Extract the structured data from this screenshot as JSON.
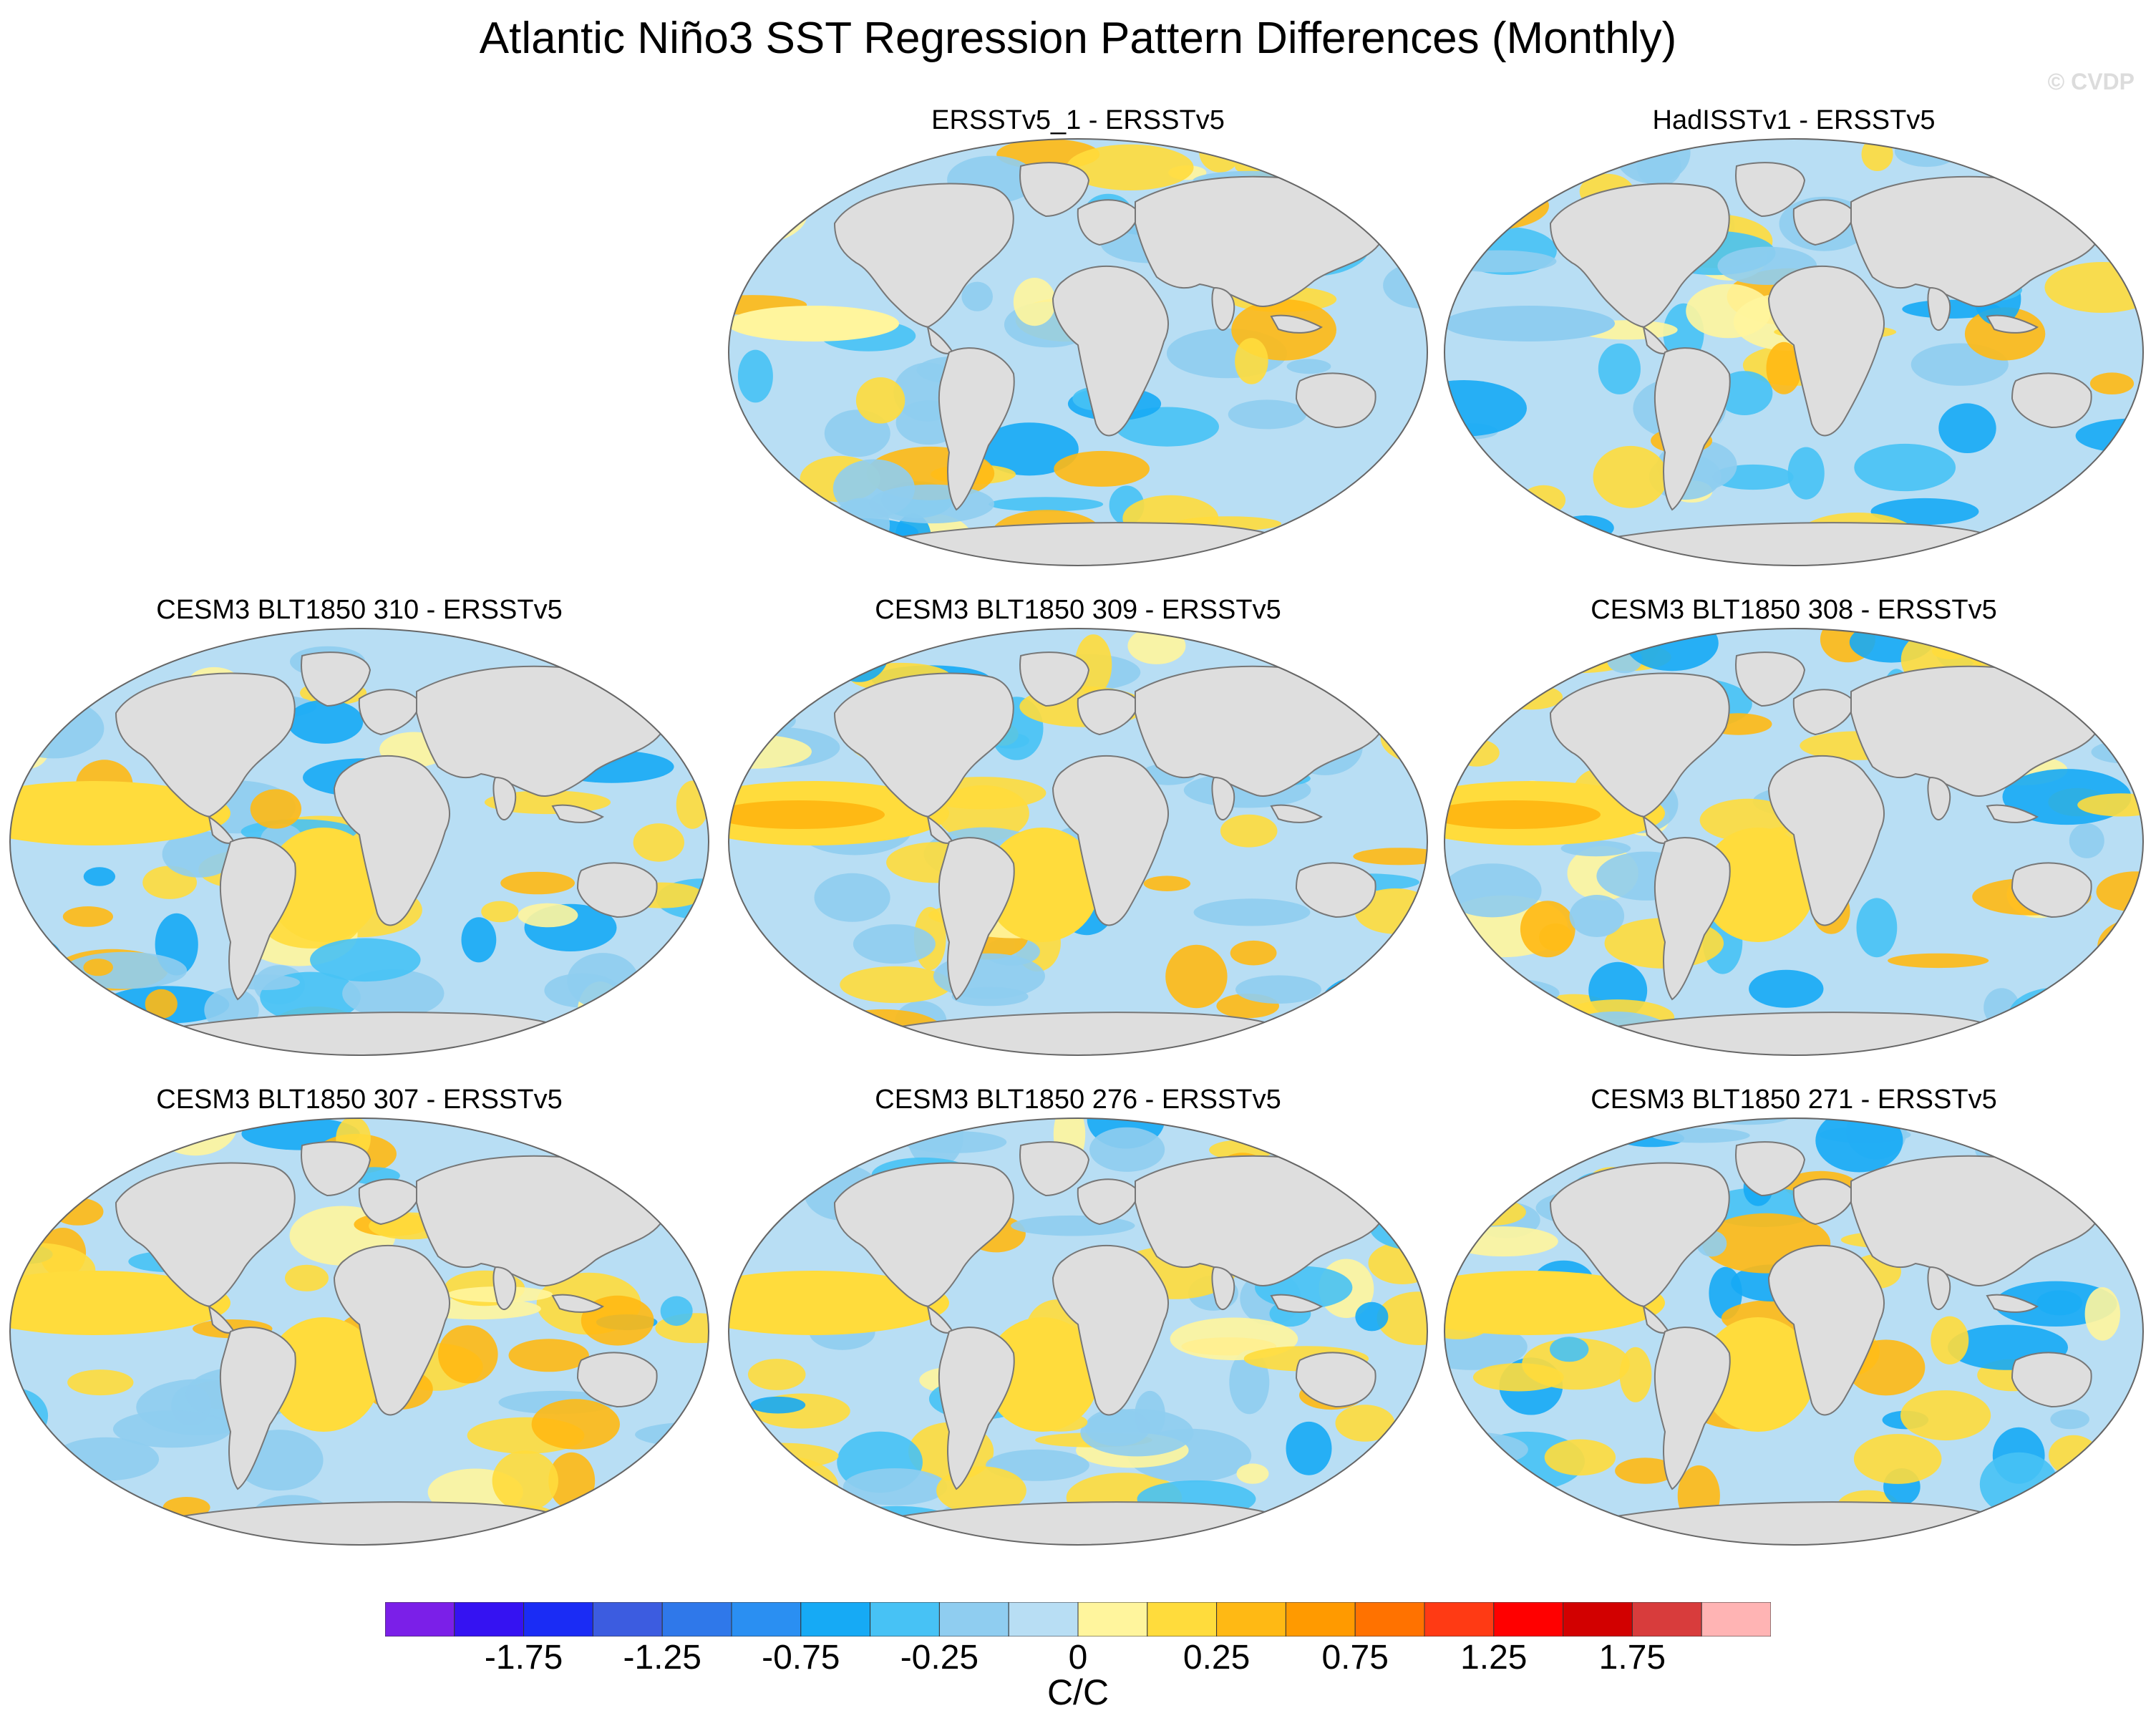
{
  "title": "Atlantic Niño3 SST Regression Pattern Differences (Monthly)",
  "watermark": "© CVDP",
  "panels": [
    {
      "title": "ERSSTv5_1 - ERSSTv5",
      "variant": 1
    },
    {
      "title": "HadISSTv1 - ERSSTv5",
      "variant": 2
    },
    {
      "title": "CESM3 BLT1850 310 - ERSSTv5",
      "variant": 3
    },
    {
      "title": "CESM3 BLT1850 309 - ERSSTv5",
      "variant": 4
    },
    {
      "title": "CESM3 BLT1850 308 - ERSSTv5",
      "variant": 5
    },
    {
      "title": "CESM3 BLT1850 307 - ERSSTv5",
      "variant": 6
    },
    {
      "title": "CESM3 BLT1850 276 - ERSSTv5",
      "variant": 7
    },
    {
      "title": "CESM3 BLT1850 271 - ERSSTv5",
      "variant": 8
    }
  ],
  "colorbar": {
    "colors": [
      "#7b1fe8",
      "#3512f2",
      "#1a2cf5",
      "#3c5ce0",
      "#2f78ea",
      "#2a8ff2",
      "#16aaf5",
      "#47c2f5",
      "#8fcdf0",
      "#b8def4",
      "#fff59d",
      "#ffdc3c",
      "#ffb914",
      "#ff9a00",
      "#ff7200",
      "#ff3a14",
      "#ff0000",
      "#d20000",
      "#d83c3c",
      "#ffb4b4"
    ],
    "tick_labels": [
      "-1.75",
      "-1.25",
      "-0.75",
      "-0.25",
      "0",
      "0.25",
      "0.75",
      "1.25",
      "1.75"
    ],
    "units": "C/C"
  },
  "legend_colors": {
    "land": "#dedede",
    "coast": "#777777",
    "ocean_base": "#b8def4"
  }
}
